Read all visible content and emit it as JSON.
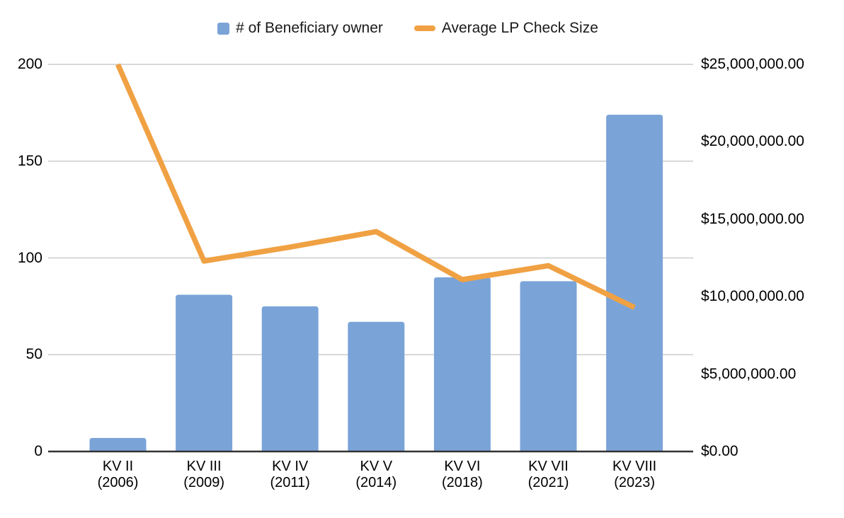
{
  "legend": {
    "items": [
      {
        "label": "# of Beneficiary owner",
        "swatch": "square-icon",
        "color": "#7aa4d8"
      },
      {
        "label": "Average LP Check Size",
        "swatch": "dash-icon",
        "color": "#f0a143"
      }
    ]
  },
  "chart_data": {
    "type": "combo",
    "title": "",
    "categories": [
      "KV II",
      "KV III",
      "KV IV",
      "KV V",
      "KV VI",
      "KV VII",
      "KV VIII"
    ],
    "category_years": [
      "(2006)",
      "(2009)",
      "(2011)",
      "(2014)",
      "(2018)",
      "(2021)",
      "(2023)"
    ],
    "series": [
      {
        "name": "# of Beneficiary owner",
        "type": "bar",
        "axis": "left",
        "color": "#7aa4d8",
        "values": [
          7,
          81,
          75,
          67,
          90,
          88,
          174
        ]
      },
      {
        "name": "Average LP Check Size",
        "type": "line",
        "axis": "right",
        "color": "#f0a143",
        "values": [
          25000000,
          12300000,
          13200000,
          14200000,
          11100000,
          12000000,
          9300000
        ]
      }
    ],
    "left_axis": {
      "range": [
        0,
        200
      ],
      "tick_values": [
        0,
        50,
        100,
        150,
        200
      ],
      "tick_labels": [
        "0",
        "50",
        "100",
        "150",
        "200"
      ]
    },
    "right_axis": {
      "range": [
        0,
        25000000
      ],
      "tick_values": [
        0,
        5000000,
        10000000,
        15000000,
        20000000,
        25000000
      ],
      "tick_labels": [
        "$0.00",
        "$5,000,000.00",
        "$10,000,000.00",
        "$15,000,000.00",
        "$20,000,000.00",
        "$25,000,000.00"
      ]
    },
    "grid": true,
    "legend_position": "top",
    "gridline_color": "#cccccc",
    "axis_line_color": "#333333",
    "background_color": "#ffffff"
  }
}
